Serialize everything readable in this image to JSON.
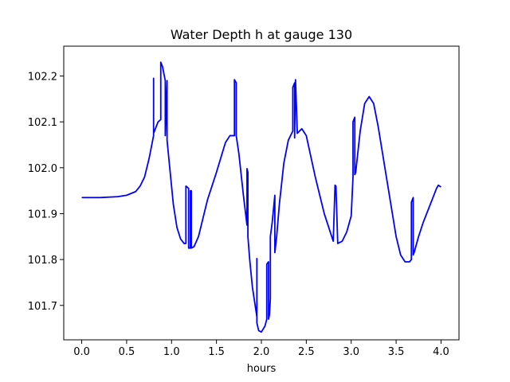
{
  "chart_data": {
    "type": "line",
    "title": "Water Depth h at gauge 130",
    "xlabel": "hours",
    "ylabel": "",
    "xlim": [
      -0.2,
      4.2
    ],
    "ylim": [
      101.625,
      102.265
    ],
    "xticks": [
      0.0,
      0.5,
      1.0,
      1.5,
      2.0,
      2.5,
      3.0,
      3.5,
      4.0
    ],
    "xtick_labels": [
      "0.0",
      "0.5",
      "1.0",
      "1.5",
      "2.0",
      "2.5",
      "3.0",
      "3.5",
      "4.0"
    ],
    "yticks": [
      101.7,
      101.8,
      101.9,
      102.0,
      102.1,
      102.2
    ],
    "ytick_labels": [
      "101.7",
      "101.8",
      "101.9",
      "102.0",
      "102.1",
      "102.2"
    ],
    "grid": false,
    "series": [
      {
        "color": "#0000ff",
        "x": [
          0.0,
          0.2,
          0.4,
          0.5,
          0.6,
          0.65,
          0.7,
          0.75,
          0.8,
          0.8,
          0.8,
          0.85,
          0.88,
          0.88,
          0.9,
          0.93,
          0.93,
          0.95,
          0.95,
          0.98,
          1.02,
          1.06,
          1.1,
          1.14,
          1.16,
          1.16,
          1.19,
          1.19,
          1.21,
          1.21,
          1.22,
          1.22,
          1.25,
          1.3,
          1.35,
          1.4,
          1.5,
          1.6,
          1.65,
          1.7,
          1.7,
          1.72,
          1.72,
          1.75,
          1.8,
          1.84,
          1.84,
          1.85,
          1.85,
          1.87,
          1.9,
          1.95,
          1.95,
          1.95,
          1.97,
          2.0,
          2.04,
          2.06,
          2.06,
          2.08,
          2.08,
          2.09,
          2.1,
          2.1,
          2.12,
          2.15,
          2.15,
          2.17,
          2.2,
          2.25,
          2.3,
          2.35,
          2.35,
          2.37,
          2.37,
          2.38,
          2.4,
          2.45,
          2.5,
          2.6,
          2.7,
          2.8,
          2.8,
          2.82,
          2.82,
          2.83,
          2.85,
          2.9,
          2.95,
          3.0,
          3.02,
          3.02,
          3.04,
          3.04,
          3.05,
          3.1,
          3.15,
          3.2,
          3.25,
          3.3,
          3.4,
          3.5,
          3.55,
          3.6,
          3.65,
          3.67,
          3.67,
          3.69,
          3.69,
          3.7,
          3.75,
          3.8,
          3.85,
          3.9,
          3.95,
          3.97,
          4.0
        ],
        "y": [
          101.935,
          101.935,
          101.937,
          101.94,
          101.948,
          101.96,
          101.98,
          102.02,
          102.07,
          102.195,
          102.075,
          102.1,
          102.105,
          102.23,
          102.22,
          102.19,
          102.07,
          102.19,
          102.06,
          102.0,
          101.92,
          101.87,
          101.845,
          101.835,
          101.835,
          101.96,
          101.955,
          101.825,
          101.825,
          101.95,
          101.95,
          101.825,
          101.828,
          101.85,
          101.89,
          101.93,
          101.99,
          102.055,
          102.07,
          102.07,
          102.192,
          102.185,
          102.07,
          102.03,
          101.94,
          101.875,
          101.998,
          101.99,
          101.85,
          101.8,
          101.74,
          101.675,
          101.802,
          101.662,
          101.645,
          101.642,
          101.655,
          101.67,
          101.79,
          101.795,
          101.67,
          101.68,
          101.715,
          101.85,
          101.88,
          101.94,
          101.815,
          101.85,
          101.92,
          102.01,
          102.06,
          102.08,
          102.175,
          102.185,
          102.065,
          102.192,
          102.075,
          102.085,
          102.07,
          101.98,
          101.9,
          101.84,
          101.84,
          101.962,
          101.962,
          101.96,
          101.835,
          101.84,
          101.86,
          101.895,
          101.98,
          102.1,
          102.11,
          101.985,
          101.99,
          102.08,
          102.14,
          102.155,
          102.14,
          102.09,
          101.97,
          101.85,
          101.81,
          101.795,
          101.795,
          101.8,
          101.925,
          101.935,
          101.81,
          101.815,
          101.85,
          101.88,
          101.905,
          101.93,
          101.955,
          101.962,
          101.958
        ]
      }
    ]
  }
}
